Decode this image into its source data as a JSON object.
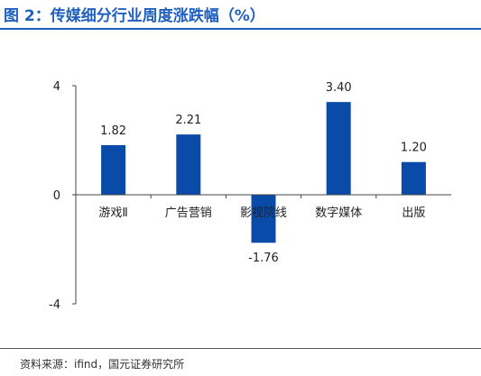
{
  "title": "图 2：传媒细分行业周度涨跌幅（%）",
  "source": "资料来源：ifind，国元证券研究所",
  "colors": {
    "accent": "#1f5fbf",
    "bar": "#0a4aa8",
    "axis": "#444444"
  },
  "chart_data": {
    "type": "bar",
    "categories": [
      "游戏Ⅱ",
      "广告营销",
      "影视院线",
      "数字媒体",
      "出版"
    ],
    "values": [
      1.82,
      2.21,
      -1.76,
      3.4,
      1.2
    ],
    "value_labels": [
      "1.82",
      "2.21",
      "-1.76",
      "3.40",
      "1.20"
    ],
    "ylim": [
      -4,
      4
    ],
    "yticks": [
      4,
      0,
      -4
    ],
    "ytick_labels": [
      "4",
      "0",
      "-4"
    ],
    "xlabel": "",
    "ylabel": "",
    "grid": false,
    "legend": "none"
  }
}
